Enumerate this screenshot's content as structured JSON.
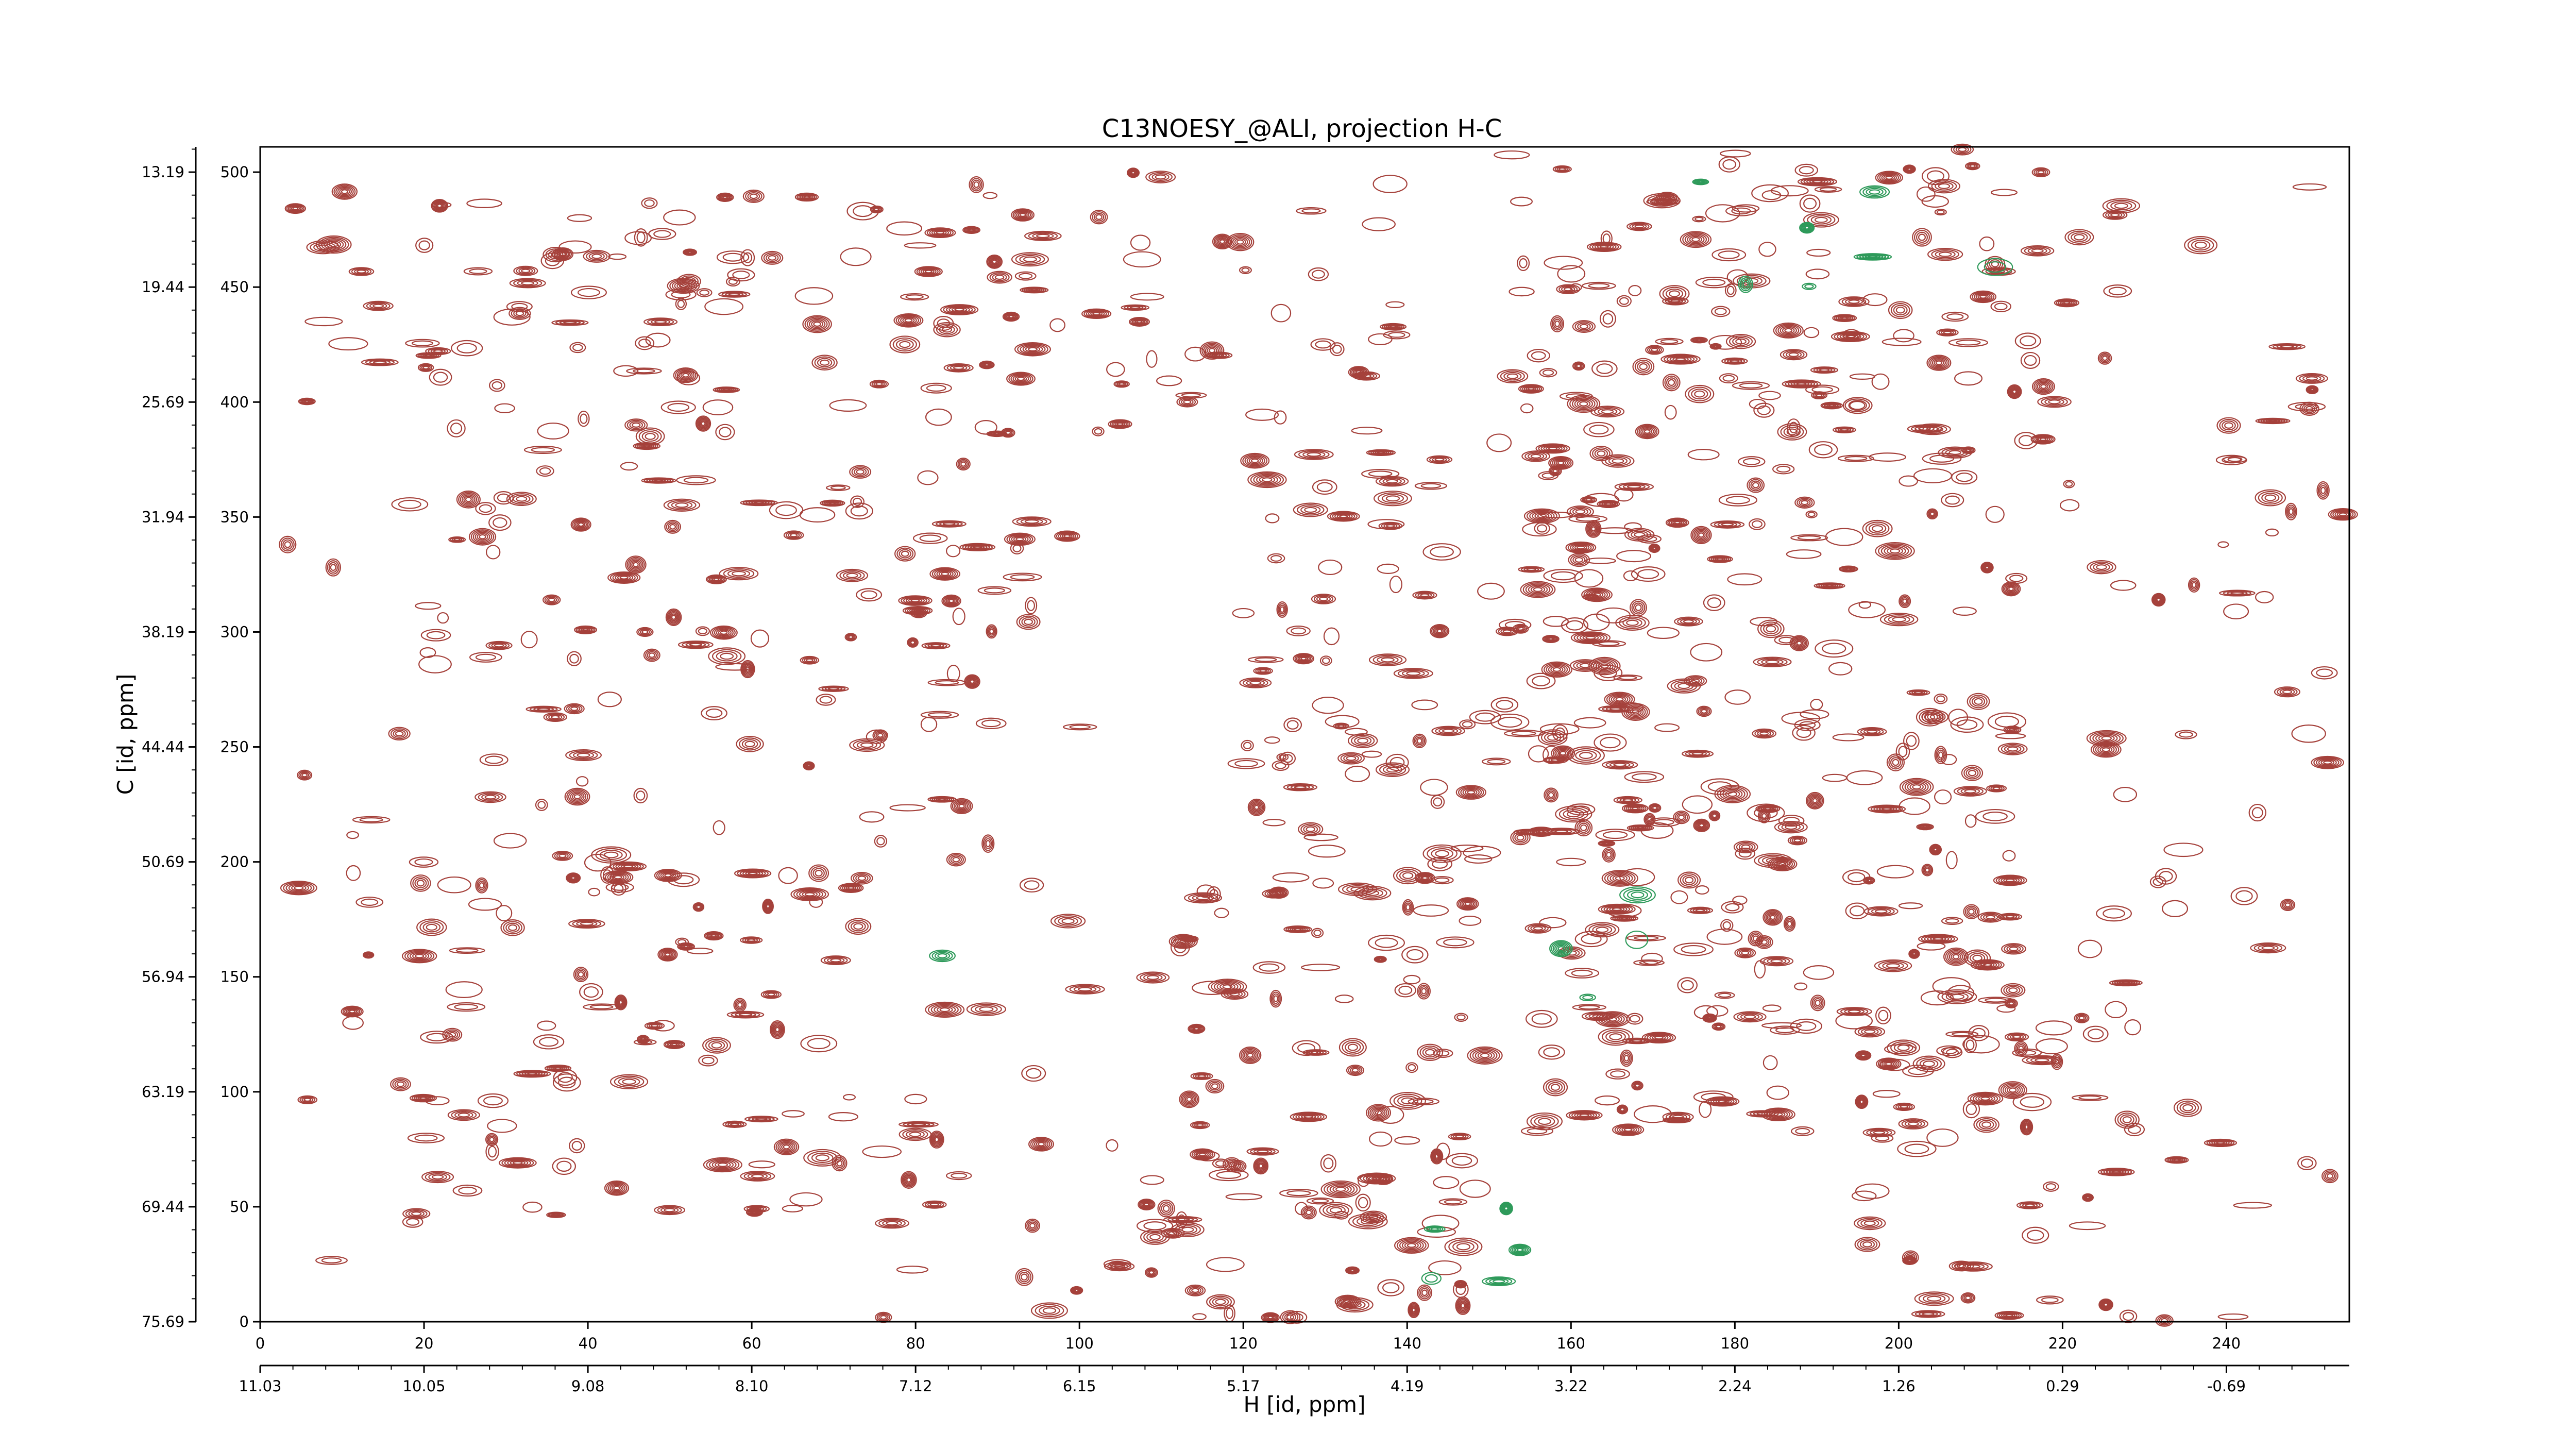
{
  "chart_data": {
    "type": "contour",
    "title": "C13NOESY_@ALI, projection H-C",
    "xlabel": "H [id, ppm]",
    "ylabel": "C [id, ppm]",
    "x_index": {
      "range": [
        0,
        255
      ],
      "ticks": [
        0,
        20,
        40,
        60,
        80,
        100,
        120,
        140,
        160,
        180,
        200,
        220,
        240
      ]
    },
    "x_ppm": {
      "ticks": [
        "11.03",
        "10.05",
        "9.08",
        "8.10",
        "7.12",
        "6.15",
        "5.17",
        "4.19",
        "3.22",
        "2.24",
        "1.26",
        "0.29",
        "-0.69"
      ]
    },
    "y_index": {
      "range": [
        0,
        511
      ],
      "ticks": [
        0,
        50,
        100,
        150,
        200,
        250,
        300,
        350,
        400,
        450,
        500
      ]
    },
    "y_ppm": {
      "ticks": [
        "75.69",
        "69.44",
        "63.19",
        "56.94",
        "50.69",
        "44.44",
        "38.19",
        "31.94",
        "25.69",
        "19.44",
        "13.19"
      ]
    },
    "series": [
      {
        "sign": "positive",
        "color": "#a5413b"
      },
      {
        "sign": "negative",
        "color": "#2e9a5a"
      }
    ],
    "peak_regions": [
      {
        "x": [
          0,
          18
        ],
        "y": [
          0,
          511
        ],
        "density": 0.15,
        "sign": "positive"
      },
      {
        "x": [
          18,
          95
        ],
        "y": [
          280,
          490
        ],
        "density": 0.55,
        "sign": "positive"
      },
      {
        "x": [
          18,
          75
        ],
        "y": [
          40,
          200
        ],
        "density": 0.6,
        "sign": "positive"
      },
      {
        "x": [
          20,
          90
        ],
        "y": [
          200,
          290
        ],
        "density": 0.3,
        "sign": "positive"
      },
      {
        "x": [
          75,
          105
        ],
        "y": [
          0,
          511
        ],
        "density": 0.2,
        "sign": "positive"
      },
      {
        "x": [
          105,
          140
        ],
        "y": [
          380,
          500
        ],
        "density": 0.45,
        "sign": "positive"
      },
      {
        "x": [
          108,
          150
        ],
        "y": [
          0,
          200
        ],
        "density": 0.8,
        "sign": "positive"
      },
      {
        "x": [
          120,
          170
        ],
        "y": [
          200,
          380
        ],
        "density": 0.7,
        "sign": "positive"
      },
      {
        "x": [
          150,
          220
        ],
        "y": [
          380,
          511
        ],
        "density": 0.8,
        "sign": "positive"
      },
      {
        "x": [
          155,
          215
        ],
        "y": [
          80,
          380
        ],
        "density": 0.85,
        "sign": "positive"
      },
      {
        "x": [
          195,
          230
        ],
        "y": [
          0,
          140
        ],
        "density": 0.5,
        "sign": "positive"
      },
      {
        "x": [
          220,
          255
        ],
        "y": [
          0,
          511
        ],
        "density": 0.2,
        "sign": "positive"
      },
      {
        "x": [
          140,
          155
        ],
        "y": [
          0,
          80
        ],
        "density": 0.25,
        "sign": "negative"
      },
      {
        "x": [
          155,
          170
        ],
        "y": [
          140,
          210
        ],
        "density": 0.2,
        "sign": "negative"
      },
      {
        "x": [
          175,
          215
        ],
        "y": [
          450,
          500
        ],
        "density": 0.2,
        "sign": "negative"
      },
      {
        "x": [
          80,
          85
        ],
        "y": [
          150,
          165
        ],
        "density": 0.5,
        "sign": "negative"
      }
    ]
  }
}
